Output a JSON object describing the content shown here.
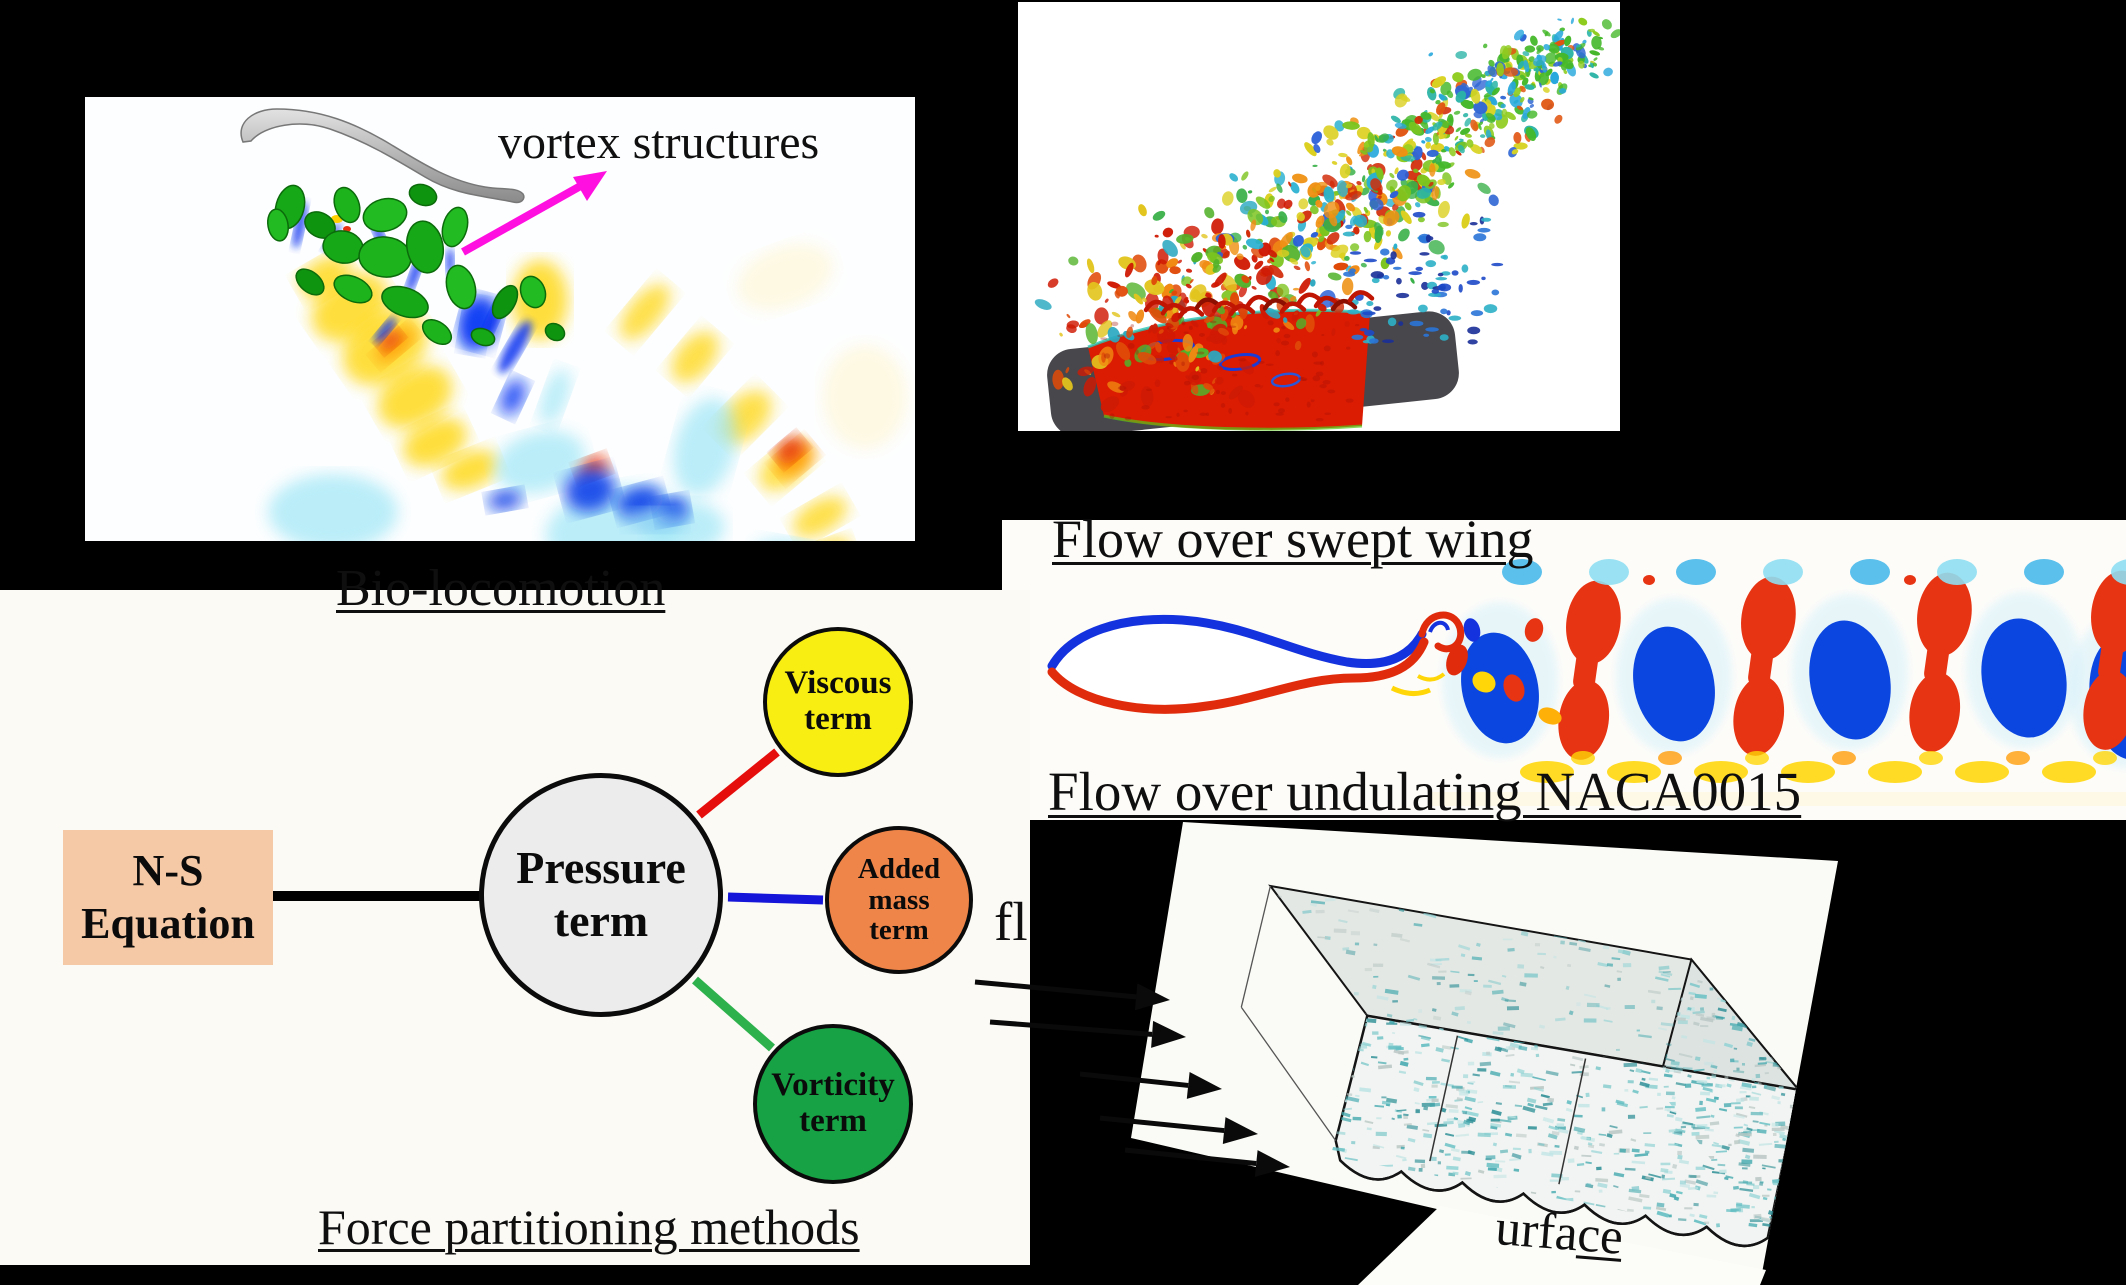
{
  "slide": {
    "panels": {
      "bio": {
        "caption": "Bio-locomotion",
        "annotation": "vortex structures"
      },
      "swept_wing": {
        "caption": "Flow over swept wing"
      },
      "naca": {
        "caption": "Flow over undulating NACA0015"
      },
      "rough_surface": {
        "caption_part1": "urfa",
        "caption_part2": "ce",
        "inflow_label_visible": "fl"
      },
      "force_partitioning": {
        "caption": "Force partitioning methods",
        "ns_equation": {
          "line1": "N-S",
          "line2": "Equation"
        },
        "pressure": {
          "line1": "Pressure",
          "line2": "term"
        },
        "viscous": {
          "line1": "Viscous",
          "line2": "term"
        },
        "added_mass": {
          "line1": "Added",
          "line2": "mass",
          "line3": "term"
        },
        "vorticity": {
          "line1": "Vorticity",
          "line2": "term"
        }
      }
    },
    "colors": {
      "background": "#000000",
      "ns_box_fill": "#f6c9a6",
      "pressure_fill": "#ececec",
      "viscous_fill": "#f8ee12",
      "added_mass_fill": "#ef8549",
      "vorticity_fill": "#17a345",
      "link_viscous": "#e60d0d",
      "link_added_mass": "#1515d9",
      "link_vorticity": "#2db14c",
      "link_pressure": "#000000",
      "annotation_arrow": "#ff10e0",
      "vortex_isosurface_green": "#1db31d",
      "field_positive_red": "#e73413",
      "field_negative_blue": "#0b46e0",
      "field_yellow": "#ffd60a",
      "field_cyan": "#8ce1f2",
      "rough_surface_teal": "#4aacb0"
    }
  }
}
